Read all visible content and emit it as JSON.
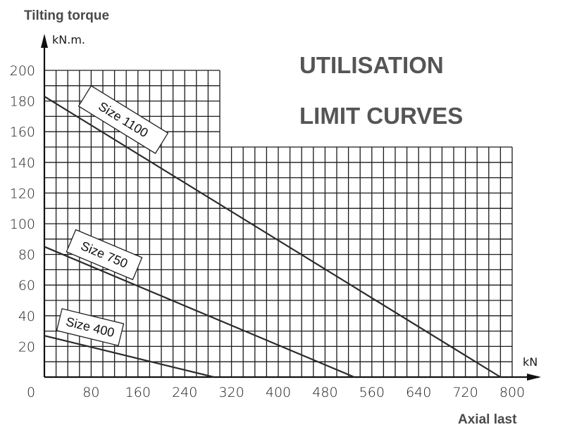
{
  "chart_data": {
    "type": "line",
    "title_lines": [
      "UTILISATION",
      "LIMIT CURVES"
    ],
    "xlabel": "Axial last",
    "ylabel": "Tilting torque",
    "x_unit": "kN",
    "y_unit": "kN.m.",
    "xlim": [
      0,
      800
    ],
    "ylim": [
      0,
      200
    ],
    "x_ticks": [
      0,
      80,
      160,
      240,
      320,
      400,
      480,
      560,
      640,
      720,
      800
    ],
    "y_ticks": [
      20,
      40,
      60,
      80,
      100,
      120,
      140,
      160,
      180,
      200
    ],
    "grid": true,
    "series": [
      {
        "name": "Size 1100",
        "x": [
          0,
          780
        ],
        "y": [
          183,
          0
        ]
      },
      {
        "name": "Size 750",
        "x": [
          0,
          530
        ],
        "y": [
          85,
          0
        ]
      },
      {
        "name": "Size 400",
        "x": [
          0,
          290
        ],
        "y": [
          27,
          0
        ]
      }
    ]
  }
}
